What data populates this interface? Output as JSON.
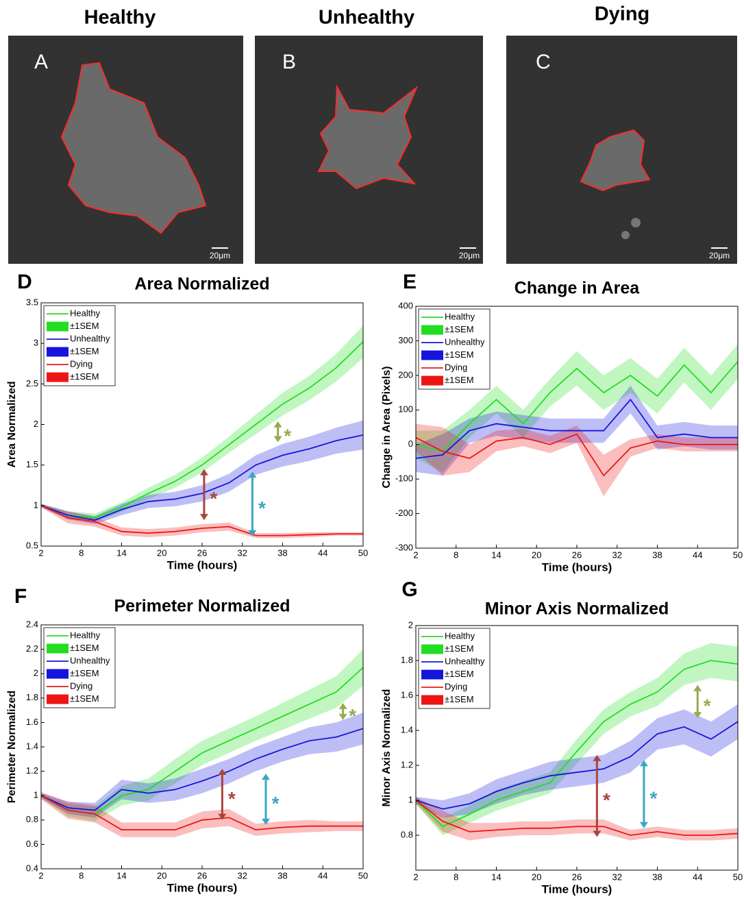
{
  "panels": [
    {
      "letter": "A",
      "title": "Healthy",
      "scale_bar": "20μm"
    },
    {
      "letter": "B",
      "title": "Unhealthy",
      "scale_bar": "20μm"
    },
    {
      "letter": "C",
      "title": "Dying",
      "scale_bar": "20μm"
    }
  ],
  "chart_data": [
    {
      "type": "line",
      "letter": "D",
      "title": "Area Normalized",
      "xlabel": "Time (hours)",
      "ylabel": "Area Normalized",
      "x": [
        2,
        6,
        10,
        14,
        18,
        22,
        26,
        30,
        34,
        38,
        42,
        46,
        50
      ],
      "xlim": [
        2,
        50
      ],
      "xticks": [
        2,
        8,
        14,
        20,
        26,
        32,
        38,
        44,
        50
      ],
      "ylim": [
        0.5,
        3.5
      ],
      "yticks": [
        0.5,
        1,
        1.5,
        2,
        2.5,
        3,
        3.5
      ],
      "series": [
        {
          "name": "Healthy",
          "error_label": "±1SEM",
          "color": "#22dd22",
          "values": [
            1,
            0.88,
            0.85,
            0.98,
            1.15,
            1.3,
            1.5,
            1.75,
            2.0,
            2.25,
            2.45,
            2.7,
            3.02
          ],
          "error": [
            0.02,
            0.05,
            0.05,
            0.06,
            0.07,
            0.08,
            0.09,
            0.1,
            0.12,
            0.14,
            0.15,
            0.17,
            0.2
          ]
        },
        {
          "name": "Unhealthy",
          "error_label": "±1SEM",
          "color": "#1515dd",
          "values": [
            1,
            0.88,
            0.82,
            0.95,
            1.05,
            1.08,
            1.15,
            1.28,
            1.5,
            1.62,
            1.7,
            1.8,
            1.87
          ],
          "error": [
            0.02,
            0.05,
            0.05,
            0.07,
            0.08,
            0.09,
            0.1,
            0.11,
            0.12,
            0.14,
            0.15,
            0.16,
            0.18
          ]
        },
        {
          "name": "Dying",
          "error_label": "±1SEM",
          "color": "#ee1515",
          "values": [
            1,
            0.85,
            0.8,
            0.68,
            0.66,
            0.68,
            0.72,
            0.74,
            0.63,
            0.63,
            0.64,
            0.65,
            0.65
          ],
          "error": [
            0.02,
            0.07,
            0.06,
            0.05,
            0.05,
            0.05,
            0.05,
            0.05,
            0.03,
            0.03,
            0.03,
            0.02,
            0.02
          ]
        }
      ],
      "annotations": [
        {
          "text": "*",
          "color": "#9aaa4e",
          "x": 37.3,
          "y": [
            1.78,
            2.04
          ]
        },
        {
          "text": "*",
          "color": "#a8463f",
          "x": 26.3,
          "y": [
            0.82,
            1.45
          ]
        },
        {
          "text": "*",
          "color": "#3aa6c4",
          "x": 33.5,
          "y": [
            0.62,
            1.42
          ]
        }
      ]
    },
    {
      "type": "line",
      "letter": "E",
      "title": "Change in Area",
      "xlabel": "Time (hours)",
      "ylabel": "Change in Area (Pixels)",
      "x": [
        2,
        6,
        10,
        14,
        18,
        22,
        26,
        30,
        34,
        38,
        42,
        46,
        50
      ],
      "xlim": [
        2,
        50
      ],
      "xticks": [
        2,
        8,
        14,
        20,
        26,
        32,
        38,
        44,
        50
      ],
      "ylim": [
        -300,
        400
      ],
      "yticks": [
        -300,
        -200,
        -100,
        0,
        100,
        200,
        300,
        400
      ],
      "series": [
        {
          "name": "Healthy",
          "error_label": "±1SEM",
          "color": "#22dd22",
          "values": [
            0,
            -20,
            60,
            130,
            60,
            150,
            220,
            150,
            200,
            140,
            230,
            150,
            240
          ],
          "error": [
            40,
            60,
            40,
            40,
            40,
            40,
            50,
            50,
            50,
            50,
            50,
            50,
            50
          ]
        },
        {
          "name": "Unhealthy",
          "error_label": "±1SEM",
          "color": "#1515dd",
          "values": [
            -40,
            -30,
            40,
            60,
            50,
            40,
            40,
            40,
            130,
            20,
            30,
            20,
            20
          ],
          "error": [
            40,
            60,
            35,
            35,
            35,
            35,
            35,
            35,
            40,
            35,
            35,
            35,
            35
          ]
        },
        {
          "name": "Dying",
          "error_label": "±1SEM",
          "color": "#ee1515",
          "values": [
            20,
            -20,
            -40,
            10,
            20,
            0,
            30,
            -90,
            -10,
            10,
            0,
            0,
            0
          ],
          "error": [
            40,
            70,
            40,
            30,
            25,
            25,
            25,
            60,
            25,
            20,
            20,
            20,
            20
          ]
        }
      ]
    },
    {
      "type": "line",
      "letter": "F",
      "title": "Perimeter Normalized",
      "xlabel": "Time (hours)",
      "ylabel": "Perimeter Normalized",
      "x": [
        2,
        6,
        10,
        14,
        18,
        22,
        26,
        30,
        34,
        38,
        42,
        46,
        50
      ],
      "xlim": [
        2,
        50
      ],
      "xticks": [
        2,
        8,
        14,
        20,
        26,
        32,
        38,
        44,
        50
      ],
      "ylim": [
        0.4,
        2.4
      ],
      "yticks": [
        0.4,
        0.6,
        0.8,
        1,
        1.2,
        1.4,
        1.6,
        1.8,
        2,
        2.2,
        2.4
      ],
      "series": [
        {
          "name": "Healthy",
          "error_label": "±1SEM",
          "color": "#22dd22",
          "values": [
            1,
            0.88,
            0.85,
            1.0,
            1.05,
            1.2,
            1.35,
            1.45,
            1.55,
            1.65,
            1.75,
            1.85,
            2.05
          ],
          "error": [
            0.02,
            0.05,
            0.06,
            0.08,
            0.09,
            0.1,
            0.1,
            0.1,
            0.1,
            0.11,
            0.12,
            0.13,
            0.15
          ]
        },
        {
          "name": "Unhealthy",
          "error_label": "±1SEM",
          "color": "#1515dd",
          "values": [
            1,
            0.9,
            0.88,
            1.05,
            1.02,
            1.05,
            1.12,
            1.2,
            1.3,
            1.38,
            1.45,
            1.48,
            1.55
          ],
          "error": [
            0.02,
            0.05,
            0.06,
            0.08,
            0.08,
            0.09,
            0.1,
            0.1,
            0.1,
            0.1,
            0.11,
            0.12,
            0.13
          ]
        },
        {
          "name": "Dying",
          "error_label": "±1SEM",
          "color": "#ee1515",
          "values": [
            1,
            0.88,
            0.85,
            0.72,
            0.72,
            0.72,
            0.8,
            0.82,
            0.72,
            0.74,
            0.75,
            0.75,
            0.75
          ],
          "error": [
            0.03,
            0.07,
            0.07,
            0.06,
            0.06,
            0.06,
            0.07,
            0.07,
            0.05,
            0.05,
            0.05,
            0.04,
            0.04
          ]
        }
      ],
      "annotations": [
        {
          "text": "*",
          "color": "#9aaa4e",
          "x": 47,
          "y": [
            1.62,
            1.76
          ]
        },
        {
          "text": "*",
          "color": "#a8463f",
          "x": 29,
          "y": [
            0.8,
            1.22
          ]
        },
        {
          "text": "*",
          "color": "#3aa6c4",
          "x": 35.5,
          "y": [
            0.76,
            1.18
          ]
        }
      ]
    },
    {
      "type": "line",
      "letter": "G",
      "title": "Minor Axis Normalized",
      "xlabel": "Time (hours)",
      "ylabel": "Minor Axis Normalized",
      "x": [
        2,
        6,
        10,
        14,
        18,
        22,
        26,
        30,
        34,
        38,
        42,
        46,
        50
      ],
      "xlim": [
        2,
        50
      ],
      "xticks": [
        2,
        8,
        14,
        20,
        26,
        32,
        38,
        44,
        50
      ],
      "ylim": [
        0.6,
        2
      ],
      "yticks": [
        0.8,
        1,
        1.2,
        1.4,
        1.6,
        1.8,
        2
      ],
      "series": [
        {
          "name": "Healthy",
          "error_label": "±1SEM",
          "color": "#22dd22",
          "values": [
            1,
            0.85,
            0.92,
            1.0,
            1.05,
            1.1,
            1.28,
            1.45,
            1.55,
            1.62,
            1.75,
            1.8,
            1.78
          ],
          "error": [
            0.02,
            0.05,
            0.05,
            0.06,
            0.06,
            0.06,
            0.07,
            0.07,
            0.07,
            0.08,
            0.09,
            0.1,
            0.1
          ]
        },
        {
          "name": "Unhealthy",
          "error_label": "±1SEM",
          "color": "#1515dd",
          "values": [
            1,
            0.95,
            0.98,
            1.05,
            1.1,
            1.14,
            1.16,
            1.18,
            1.25,
            1.38,
            1.42,
            1.35,
            1.45
          ],
          "error": [
            0.02,
            0.05,
            0.06,
            0.07,
            0.07,
            0.08,
            0.08,
            0.08,
            0.09,
            0.09,
            0.1,
            0.1,
            0.1
          ]
        },
        {
          "name": "Dying",
          "error_label": "±1SEM",
          "color": "#ee1515",
          "values": [
            1,
            0.88,
            0.82,
            0.83,
            0.84,
            0.84,
            0.85,
            0.85,
            0.8,
            0.82,
            0.8,
            0.8,
            0.81
          ],
          "error": [
            0.02,
            0.06,
            0.05,
            0.04,
            0.04,
            0.04,
            0.04,
            0.04,
            0.03,
            0.03,
            0.03,
            0.03,
            0.03
          ]
        }
      ],
      "annotations": [
        {
          "text": "*",
          "color": "#9aaa4e",
          "x": 44,
          "y": [
            1.47,
            1.66
          ]
        },
        {
          "text": "*",
          "color": "#a8463f",
          "x": 29,
          "y": [
            0.79,
            1.26
          ]
        },
        {
          "text": "*",
          "color": "#3aa6c4",
          "x": 36,
          "y": [
            0.84,
            1.23
          ]
        }
      ]
    }
  ]
}
